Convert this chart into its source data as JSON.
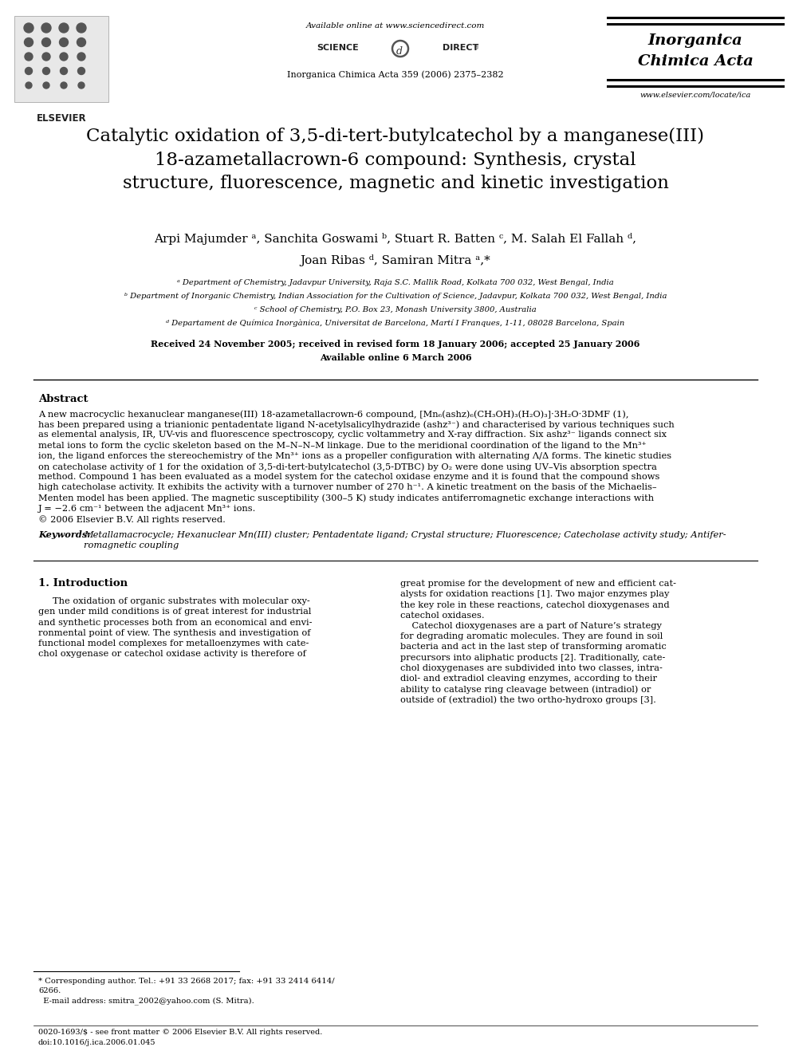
{
  "bg_color": "#ffffff",
  "header": {
    "available_online": "Available online at www.sciencedirect.com",
    "journal_info": "Inorganica Chimica Acta 359 (2006) 2375–2382",
    "journal_name_line1": "Inorganica",
    "journal_name_line2": "Chimica Acta",
    "website": "www.elsevier.com/locate/ica"
  },
  "title": "Catalytic oxidation of 3,5-di-tert-butylcatechol by a manganese(III)\n18-azametallacrown-6 compound: Synthesis, crystal\nstructure, fluorescence, magnetic and kinetic investigation",
  "authors": "Arpi Majumder ᵃ, Sanchita Goswami ᵇ, Stuart R. Batten ᶜ, M. Salah El Fallah ᵈ,\nJoan Ribas ᵈ, Samiran Mitra ᵃ,*",
  "affiliations": [
    "ᵃ Department of Chemistry, Jadavpur University, Raja S.C. Mallik Road, Kolkata 700 032, West Bengal, India",
    "ᵇ Department of Inorganic Chemistry, Indian Association for the Cultivation of Science, Jadavpur, Kolkata 700 032, West Bengal, India",
    "ᶜ School of Chemistry, P.O. Box 23, Monash University 3800, Australia",
    "ᵈ Departament de Química Inorgànica, Universitat de Barcelona, Martí I Franques, 1-11, 08028 Barcelona, Spain"
  ],
  "dates": "Received 24 November 2005; received in revised form 18 January 2006; accepted 25 January 2006\nAvailable online 6 March 2006",
  "abstract_title": "Abstract",
  "abstract_text_lines": [
    "A new macrocyclic hexanuclear manganese(III) 18-azametallacrown-6 compound, [Mn₆(ashz)₆(CH₃OH)₃(H₂O)₃]·3H₂O·3DMF (1),",
    "has been prepared using a trianionic pentadentate ligand N-acetylsalicylhydrazide (ashz³⁻) and characterised by various techniques such",
    "as elemental analysis, IR, UV-vis and fluorescence spectroscopy, cyclic voltammetry and X-ray diffraction. Six ashz³⁻ ligands connect six",
    "metal ions to form the cyclic skeleton based on the M–N–N–M linkage. Due to the meridional coordination of the ligand to the Mn³⁺",
    "ion, the ligand enforces the stereochemistry of the Mn³⁺ ions as a propeller configuration with alternating Λ/Δ forms. The kinetic studies",
    "on catecholase activity of 1 for the oxidation of 3,5-di-tert-butylcatechol (3,5-DTBC) by O₂ were done using UV–Vis absorption spectra",
    "method. Compound 1 has been evaluated as a model system for the catechol oxidase enzyme and it is found that the compound shows",
    "high catecholase activity. It exhibits the activity with a turnover number of 270 h⁻¹. A kinetic treatment on the basis of the Michaelis–",
    "Menten model has been applied. The magnetic susceptibility (300–5 K) study indicates antiferromagnetic exchange interactions with",
    "J = −2.6 cm⁻¹ between the adjacent Mn³⁺ ions.",
    "© 2006 Elsevier B.V. All rights reserved."
  ],
  "keywords_label": "Keywords:",
  "keywords_text": "Metallamacrocycle; Hexanuclear Mn(III) cluster; Pentadentate ligand; Crystal structure; Fluorescence; Catecholase activity study; Antifer-\nromagnetic coupling",
  "section_title": "1. Introduction",
  "intro_left_lines": [
    "The oxidation of organic substrates with molecular oxy-",
    "gen under mild conditions is of great interest for industrial",
    "and synthetic processes both from an economical and envi-",
    "ronmental point of view. The synthesis and investigation of",
    "functional model complexes for metalloenzymes with cate-",
    "chol oxygenase or catechol oxidase activity is therefore of"
  ],
  "intro_right_lines": [
    "great promise for the development of new and efficient cat-",
    "alysts for oxidation reactions [1]. Two major enzymes play",
    "the key role in these reactions, catechol dioxygenases and",
    "catechol oxidases.",
    "    Catechol dioxygenases are a part of Nature’s strategy",
    "for degrading aromatic molecules. They are found in soil",
    "bacteria and act in the last step of transforming aromatic",
    "precursors into aliphatic products [2]. Traditionally, cate-",
    "chol dioxygenases are subdivided into two classes, intra-",
    "diol- and extradiol cleaving enzymes, according to their",
    "ability to catalyse ring cleavage between (intradiol) or",
    "outside of (extradiol) the two ortho-hydroxo groups [3]."
  ],
  "footnote_lines": [
    "* Corresponding author. Tel.: +91 33 2668 2017; fax: +91 33 2414 6414/",
    "6266.",
    "  E-mail address: smitra_2002@yahoo.com (S. Mitra)."
  ],
  "footer_left": "0020-1693/$ - see front matter © 2006 Elsevier B.V. All rights reserved.\ndoi:10.1016/j.ica.2006.01.045"
}
